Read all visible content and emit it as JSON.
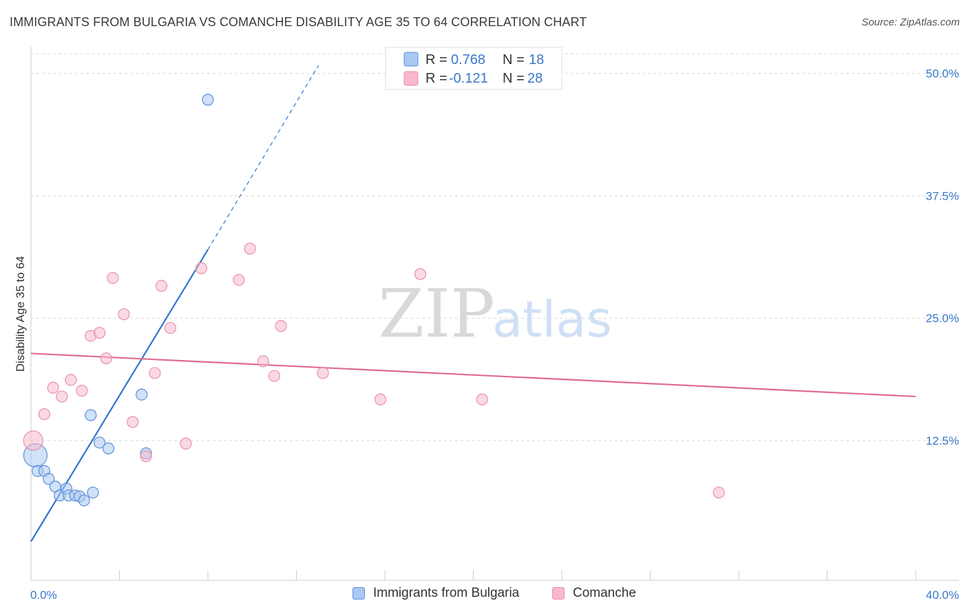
{
  "title": "IMMIGRANTS FROM BULGARIA VS COMANCHE DISABILITY AGE 35 TO 64 CORRELATION CHART",
  "source": "Source: ZipAtlas.com",
  "watermark": {
    "zip": "ZIP",
    "atlas": "atlas"
  },
  "colors": {
    "blue_fill": "#a9c8f2",
    "blue_stroke": "#5b8fd6",
    "blue_line": "#2f74d0",
    "pink_fill": "#f7b9cb",
    "pink_stroke": "#e88fa9",
    "pink_line": "#e06a92",
    "tick_text": "#3a78c9",
    "grid": "#d8d8d8"
  },
  "legend": {
    "r_label": "R =",
    "n_label": "N =",
    "series": [
      {
        "r": "0.768",
        "n": "18"
      },
      {
        "r": "-0.121",
        "n": "28"
      }
    ]
  },
  "chart_data": {
    "type": "scatter",
    "title": "IMMIGRANTS FROM BULGARIA VS COMANCHE DISABILITY AGE 35 TO 64 CORRELATION CHART",
    "xlabel": "",
    "ylabel": "Disability Age 35 to 64",
    "xlim": [
      0,
      40
    ],
    "ylim": [
      0,
      52
    ],
    "x_tick_labels": [
      "0.0%",
      "40.0%"
    ],
    "y_ticks": [
      12.5,
      25.0,
      37.5,
      50.0
    ],
    "y_tick_labels": [
      "12.5%",
      "25.0%",
      "37.5%",
      "50.0%"
    ],
    "series": [
      {
        "name": "Immigrants from Bulgaria",
        "color": "blue",
        "trend": {
          "x1": 0.0,
          "y1": 2.2,
          "x2": 8.0,
          "y2": 32.0,
          "dash_to_x": 13.0,
          "dash_to_y": 50.8
        },
        "points": [
          {
            "x": 8.0,
            "y": 47.3,
            "r": 8
          },
          {
            "x": 0.2,
            "y": 11.0,
            "r": 17
          },
          {
            "x": 0.3,
            "y": 9.4,
            "r": 8
          },
          {
            "x": 0.6,
            "y": 9.4,
            "r": 8
          },
          {
            "x": 0.8,
            "y": 8.6,
            "r": 8
          },
          {
            "x": 1.1,
            "y": 7.8,
            "r": 8
          },
          {
            "x": 1.3,
            "y": 6.9,
            "r": 8
          },
          {
            "x": 1.6,
            "y": 7.6,
            "r": 8
          },
          {
            "x": 1.7,
            "y": 6.9,
            "r": 8
          },
          {
            "x": 2.0,
            "y": 6.9,
            "r": 8
          },
          {
            "x": 2.2,
            "y": 6.8,
            "r": 8
          },
          {
            "x": 2.4,
            "y": 6.4,
            "r": 8
          },
          {
            "x": 2.8,
            "y": 7.2,
            "r": 8
          },
          {
            "x": 2.7,
            "y": 15.1,
            "r": 8
          },
          {
            "x": 3.1,
            "y": 12.3,
            "r": 8
          },
          {
            "x": 3.5,
            "y": 11.7,
            "r": 8
          },
          {
            "x": 5.0,
            "y": 17.2,
            "r": 8
          },
          {
            "x": 5.2,
            "y": 11.2,
            "r": 8
          }
        ]
      },
      {
        "name": "Comanche",
        "color": "pink",
        "trend": {
          "x1": 0.0,
          "y1": 21.4,
          "x2": 40.0,
          "y2": 17.0
        },
        "points": [
          {
            "x": 0.1,
            "y": 12.5,
            "r": 14
          },
          {
            "x": 0.6,
            "y": 15.2,
            "r": 8
          },
          {
            "x": 1.0,
            "y": 17.9,
            "r": 8
          },
          {
            "x": 1.4,
            "y": 17.0,
            "r": 8
          },
          {
            "x": 1.8,
            "y": 18.7,
            "r": 8
          },
          {
            "x": 2.3,
            "y": 17.6,
            "r": 8
          },
          {
            "x": 2.7,
            "y": 23.2,
            "r": 8
          },
          {
            "x": 3.1,
            "y": 23.5,
            "r": 8
          },
          {
            "x": 3.4,
            "y": 20.9,
            "r": 8
          },
          {
            "x": 3.7,
            "y": 29.1,
            "r": 8
          },
          {
            "x": 4.2,
            "y": 25.4,
            "r": 8
          },
          {
            "x": 4.6,
            "y": 14.4,
            "r": 8
          },
          {
            "x": 5.2,
            "y": 10.9,
            "r": 8
          },
          {
            "x": 5.6,
            "y": 19.4,
            "r": 8
          },
          {
            "x": 5.9,
            "y": 28.3,
            "r": 8
          },
          {
            "x": 6.3,
            "y": 24.0,
            "r": 8
          },
          {
            "x": 7.0,
            "y": 12.2,
            "r": 8
          },
          {
            "x": 7.7,
            "y": 30.1,
            "r": 8
          },
          {
            "x": 9.4,
            "y": 28.9,
            "r": 8
          },
          {
            "x": 9.9,
            "y": 32.1,
            "r": 8
          },
          {
            "x": 10.5,
            "y": 20.6,
            "r": 8
          },
          {
            "x": 11.0,
            "y": 19.1,
            "r": 8
          },
          {
            "x": 11.3,
            "y": 24.2,
            "r": 8
          },
          {
            "x": 13.2,
            "y": 19.4,
            "r": 8
          },
          {
            "x": 15.8,
            "y": 16.7,
            "r": 8
          },
          {
            "x": 17.6,
            "y": 29.5,
            "r": 8
          },
          {
            "x": 20.4,
            "y": 16.7,
            "r": 8
          },
          {
            "x": 31.1,
            "y": 7.2,
            "r": 8
          }
        ]
      }
    ]
  }
}
